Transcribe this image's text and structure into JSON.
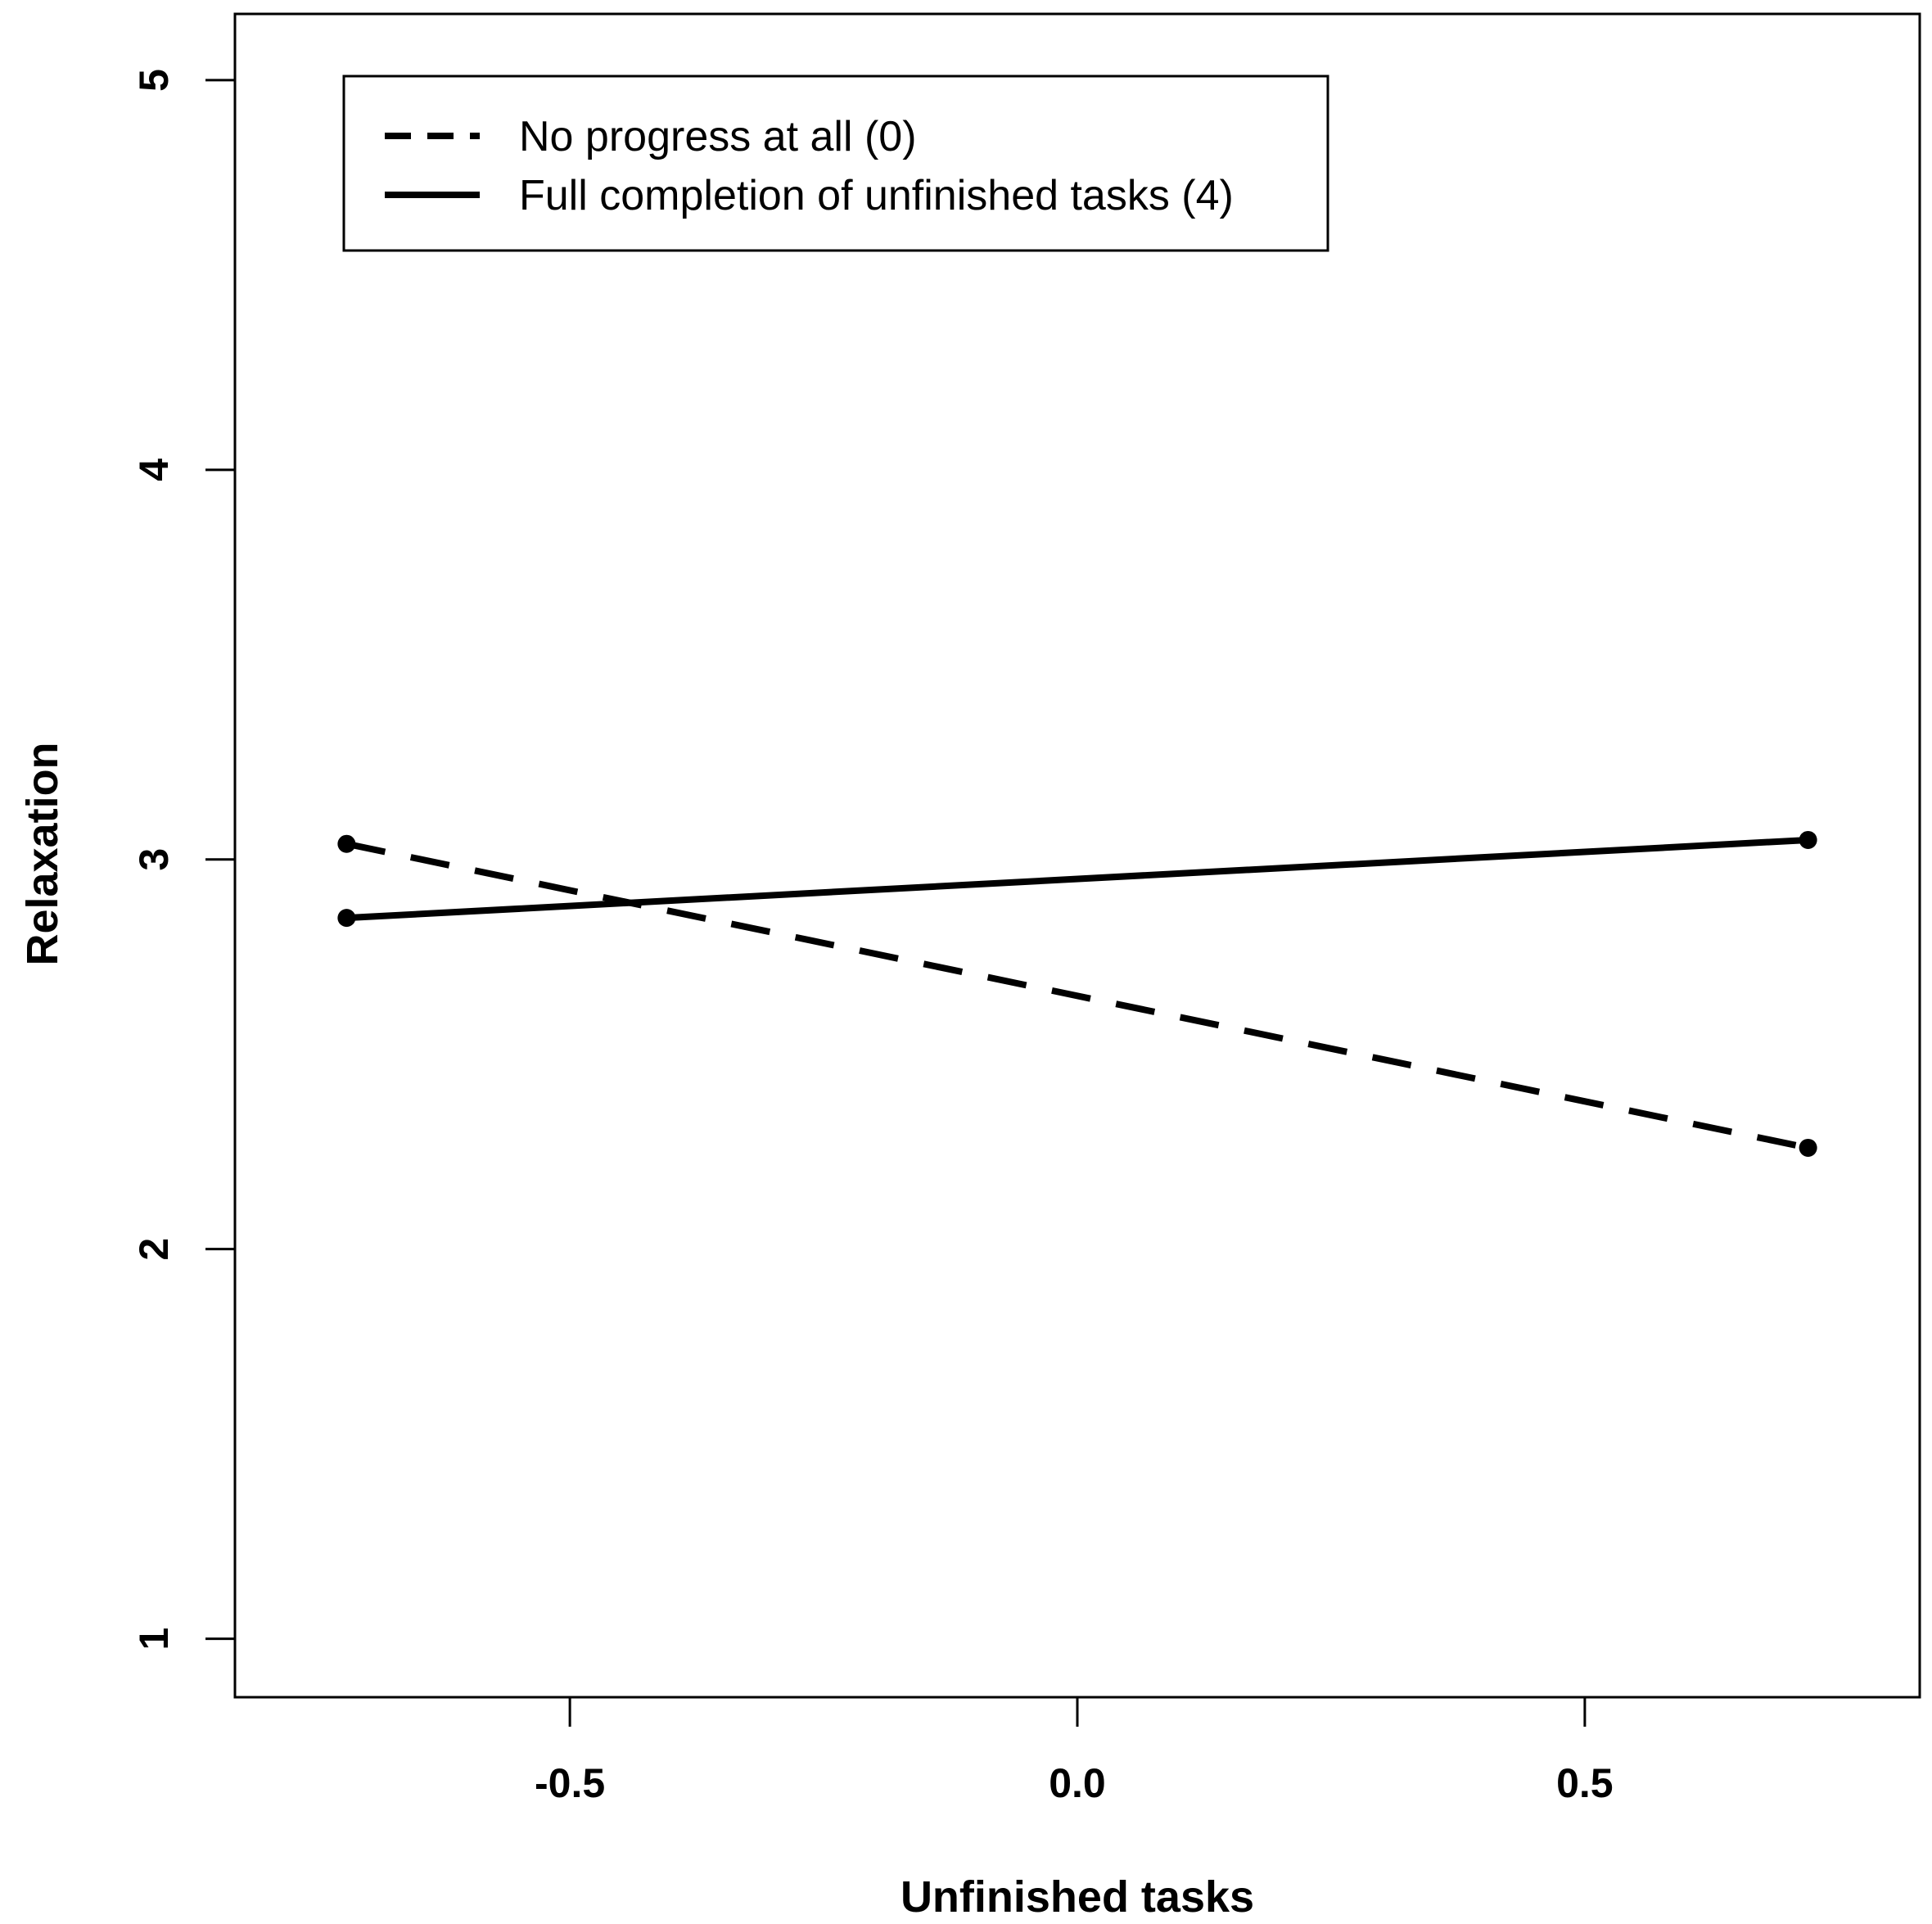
{
  "chart_data": {
    "type": "line",
    "title": "",
    "xlabel": "Unfinished tasks",
    "ylabel": "Relaxation",
    "xlim": [
      -0.83,
      0.83
    ],
    "ylim": [
      0.85,
      5.17
    ],
    "xticks": [
      {
        "value": -0.5,
        "label": "-0.5"
      },
      {
        "value": 0.0,
        "label": "0.0"
      },
      {
        "value": 0.5,
        "label": "0.5"
      }
    ],
    "yticks": [
      {
        "value": 1,
        "label": "1"
      },
      {
        "value": 2,
        "label": "2"
      },
      {
        "value": 3,
        "label": "3"
      },
      {
        "value": 4,
        "label": "4"
      },
      {
        "value": 5,
        "label": "5"
      }
    ],
    "grid": false,
    "legend_position": "top-left",
    "series": [
      {
        "name": "No progress at all (0)",
        "line_style": "dashed",
        "color": "#000000",
        "x": [
          -0.72,
          0.72
        ],
        "y": [
          3.04,
          2.26
        ]
      },
      {
        "name": "Full completion of unfinished tasks (4)",
        "line_style": "solid",
        "color": "#000000",
        "x": [
          -0.72,
          0.72
        ],
        "y": [
          2.85,
          3.05
        ]
      }
    ]
  }
}
